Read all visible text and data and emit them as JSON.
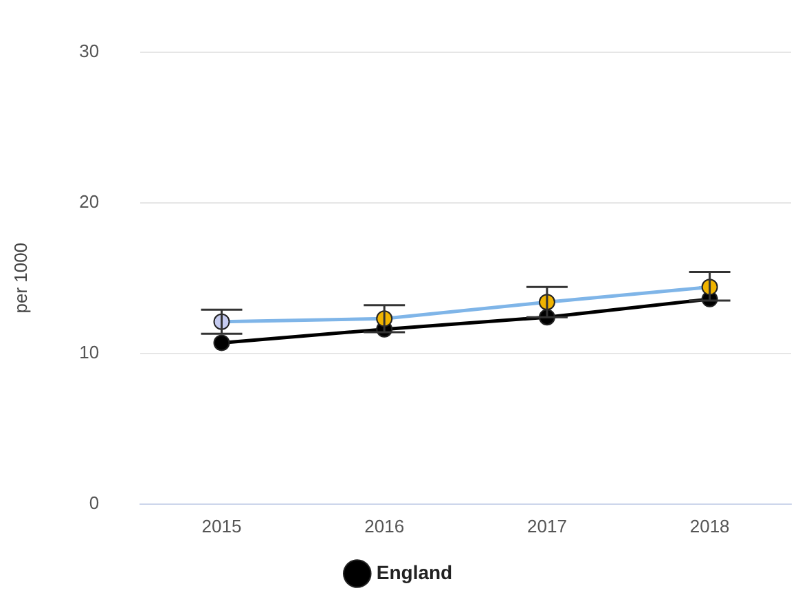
{
  "chart_data": {
    "type": "line",
    "ylabel": "per 1000",
    "categories": [
      "2015",
      "2016",
      "2017",
      "2018"
    ],
    "ylim": [
      0,
      30
    ],
    "yticks": [
      0,
      10,
      20,
      30
    ],
    "grid": "y",
    "legend": "bottom",
    "marker": "circle",
    "series": [
      {
        "color": "#7fb5e8",
        "colors": [
          "#c5cbf0",
          "#f0b400",
          "#f0b400",
          "#f0b400"
        ],
        "values": [
          12.1,
          12.3,
          13.4,
          14.4
        ],
        "errors": [
          [
            11.3,
            12.9
          ],
          [
            11.4,
            13.2
          ],
          [
            12.4,
            14.4
          ],
          [
            13.5,
            15.4
          ]
        ]
      },
      {
        "name": "England",
        "color": "#000000",
        "values": [
          10.7,
          11.6,
          12.4,
          13.6
        ]
      }
    ]
  }
}
